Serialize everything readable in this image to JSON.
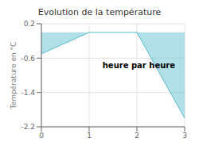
{
  "chart_data": {
    "type": "area",
    "title": "Evolution de la température",
    "xlabel": "heure par heure",
    "ylabel": "Température en °C",
    "x": [
      0,
      1,
      2,
      3
    ],
    "values": [
      -0.5,
      0.0,
      0.0,
      -2.0
    ],
    "color": "#55bbcc",
    "xlim": [
      0,
      3
    ],
    "ylim": [
      -2.2,
      0.2
    ],
    "xticks": [
      0,
      1,
      2,
      3
    ],
    "yticks": [
      0.2,
      -0.6,
      -1.4,
      -2.2
    ],
    "grid": true
  }
}
